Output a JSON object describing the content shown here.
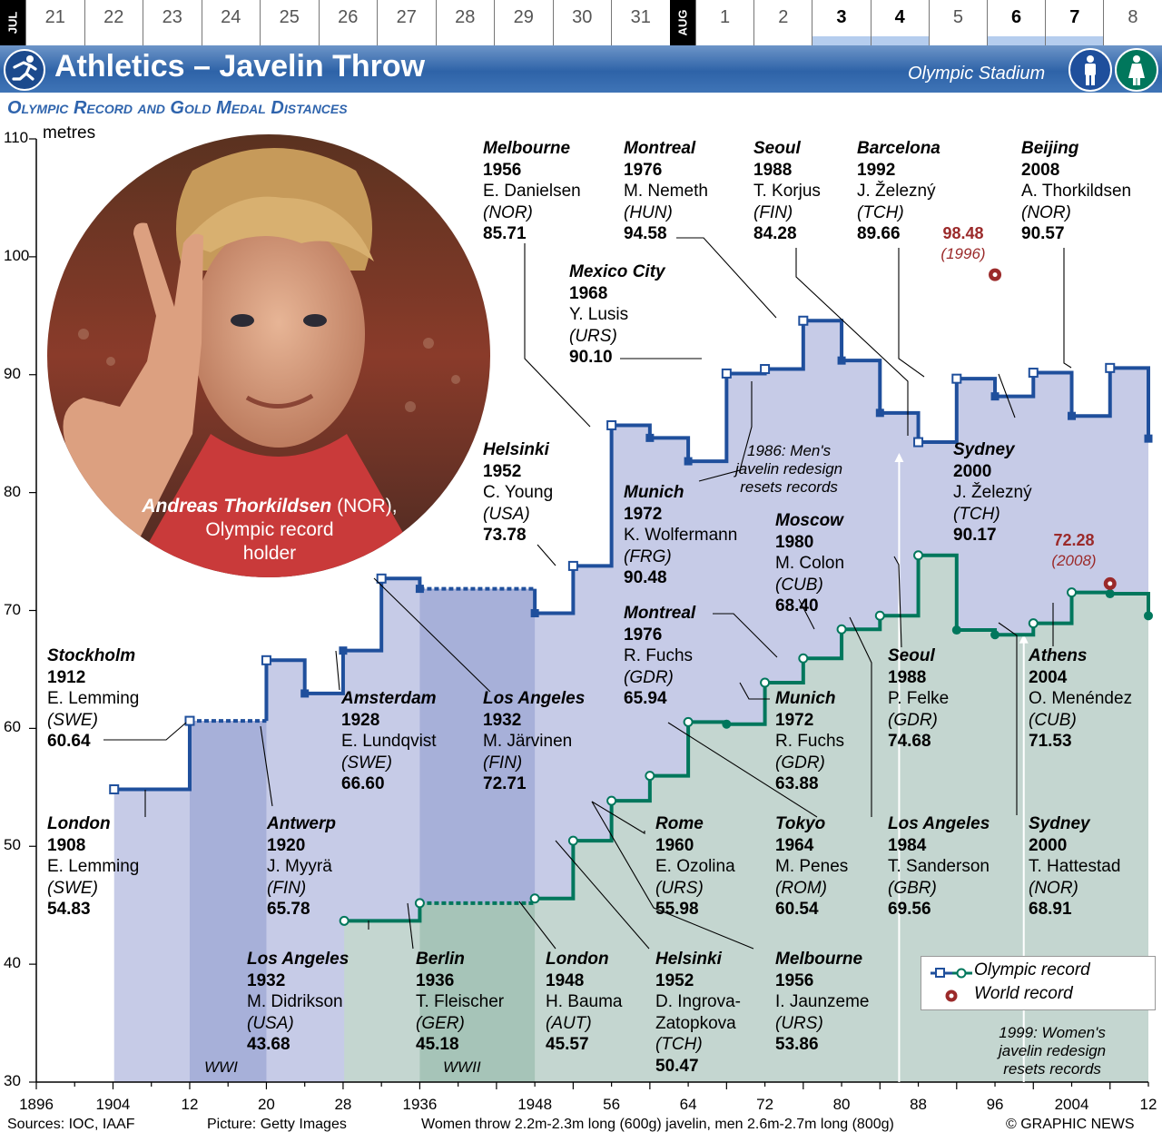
{
  "schedule": {
    "jul_label": "JUL",
    "aug_label": "AUG",
    "jul_days": [
      "21",
      "22",
      "23",
      "24",
      "25",
      "26",
      "27",
      "28",
      "29",
      "30",
      "31"
    ],
    "aug_days": [
      "1",
      "2",
      "3",
      "4",
      "5",
      "6",
      "7",
      "8"
    ],
    "event_days": [
      "3",
      "4",
      "6",
      "7"
    ]
  },
  "header": {
    "title": "Athletics – Javelin Throw",
    "venue": "Olympic Stadium",
    "subtitle": "Olympic Record and Gold Medal Distances",
    "ylabel": "metres"
  },
  "colors": {
    "men": "#1f4f9c",
    "women": "#00775c",
    "men_fill": "#c6cbe7",
    "women_fill": "#c4d6d0",
    "war_men": "#a7b0d9",
    "war_women": "#a6c4b8",
    "record": "#9b2a2a"
  },
  "photo": {
    "caption_name": "Andreas Thorkildsen",
    "caption_country": "(NOR),",
    "caption_rest1": "Olympic record",
    "caption_rest2": "holder"
  },
  "war_labels": {
    "ww1": "WWI",
    "ww2": "WWII"
  },
  "notes": {
    "men_redesign": [
      "1986: Men's",
      "javelin redesign",
      "resets records"
    ],
    "women_redesign": [
      "1999: Women's",
      "javelin redesign",
      "resets records"
    ]
  },
  "world_records": {
    "men": {
      "value": "98.48",
      "year": "(1996)"
    },
    "women": {
      "value": "72.28",
      "year": "(2008)"
    }
  },
  "legend": {
    "olympic": "Olympic record",
    "world": "World record"
  },
  "footer": {
    "sources": "Sources: IOC, IAAF",
    "picture": "Picture: Getty Images",
    "spec": "Women throw 2.2m-2.3m long (600g) javelin, men 2.6m-2.7m long (800g)",
    "credit": "© GRAPHIC NEWS"
  },
  "annotations": [
    {
      "city": "Melbourne",
      "year": "1956",
      "athlete": "E. Danielsen",
      "nation": "(NOR)",
      "value": "85.71"
    },
    {
      "city": "Montreal",
      "year": "1976",
      "athlete": "M. Nemeth",
      "nation": "(HUN)",
      "value": "94.58"
    },
    {
      "city": "Seoul",
      "year": "1988",
      "athlete": "T. Korjus",
      "nation": "(FIN)",
      "value": "84.28"
    },
    {
      "city": "Barcelona",
      "year": "1992",
      "athlete": "J. Železný",
      "nation": "(TCH)",
      "value": "89.66"
    },
    {
      "city": "Beijing",
      "year": "2008",
      "athlete": "A. Thorkildsen",
      "nation": "(NOR)",
      "value": "90.57"
    },
    {
      "city": "Mexico City",
      "year": "1968",
      "athlete": "Y. Lusis",
      "nation": "(URS)",
      "value": "90.10"
    },
    {
      "city": "Helsinki",
      "year": "1952",
      "athlete": "C. Young",
      "nation": "(USA)",
      "value": "73.78"
    },
    {
      "city": "Munich",
      "year": "1972",
      "athlete": "K. Wolfermann",
      "nation": "(FRG)",
      "value": "90.48"
    },
    {
      "city": "Sydney",
      "year": "2000",
      "athlete": "J. Železný",
      "nation": "(TCH)",
      "value": "90.17"
    },
    {
      "city": "Stockholm",
      "year": "1912",
      "athlete": "E. Lemming",
      "nation": "(SWE)",
      "value": "60.64"
    },
    {
      "city": "Amsterdam",
      "year": "1928",
      "athlete": "E. Lundqvist",
      "nation": "(SWE)",
      "value": "66.60"
    },
    {
      "city": "Los Angeles",
      "year": "1932",
      "athlete": "M. Järvinen",
      "nation": "(FIN)",
      "value": "72.71"
    },
    {
      "city": "London",
      "year": "1908",
      "athlete": "E. Lemming",
      "nation": "(SWE)",
      "value": "54.83"
    },
    {
      "city": "Antwerp",
      "year": "1920",
      "athlete": "J. Myyrä",
      "nation": "(FIN)",
      "value": "65.78"
    },
    {
      "city": "Moscow",
      "year": "1980",
      "athlete": "M. Colon",
      "nation": "(CUB)",
      "value": "68.40"
    },
    {
      "city": "Montreal",
      "year": "1976",
      "athlete": "R. Fuchs",
      "nation": "(GDR)",
      "value": "65.94"
    },
    {
      "city": "Munich",
      "year": "1972",
      "athlete": "R. Fuchs",
      "nation": "(GDR)",
      "value": "63.88"
    },
    {
      "city": "Seoul",
      "year": "1988",
      "athlete": "P. Felke",
      "nation": "(GDR)",
      "value": "74.68"
    },
    {
      "city": "Athens",
      "year": "2004",
      "athlete": "O. Menéndez",
      "nation": "(CUB)",
      "value": "71.53"
    },
    {
      "city": "Rome",
      "year": "1960",
      "athlete": "E. Ozolina",
      "nation": "(URS)",
      "value": "55.98"
    },
    {
      "city": "Tokyo",
      "year": "1964",
      "athlete": "M. Penes",
      "nation": "(ROM)",
      "value": "60.54"
    },
    {
      "city": "Los Angeles",
      "year": "1984",
      "athlete": "T. Sanderson",
      "nation": "(GBR)",
      "value": "69.56"
    },
    {
      "city": "Sydney",
      "year": "2000",
      "athlete": "T. Hattestad",
      "nation": "(NOR)",
      "value": "68.91"
    },
    {
      "city": "Los Angeles",
      "year": "1932",
      "athlete": "M. Didrikson",
      "nation": "(USA)",
      "value": "43.68"
    },
    {
      "city": "Berlin",
      "year": "1936",
      "athlete": "T. Fleischer",
      "nation": "(GER)",
      "value": "45.18"
    },
    {
      "city": "London",
      "year": "1948",
      "athlete": "H. Bauma",
      "nation": "(AUT)",
      "value": "45.57"
    },
    {
      "city": "Helsinki",
      "year": "1952",
      "athlete": "D. Ingrova-",
      "athlete2": "Zatopkova",
      "nation": "(TCH)",
      "value": "50.47"
    },
    {
      "city": "Melbourne",
      "year": "1956",
      "athlete": "I. Jaunzeme",
      "nation": "(URS)",
      "value": "53.86"
    }
  ],
  "chart_data": {
    "type": "line",
    "title": "Olympic Record and Gold Medal Distances",
    "ylabel": "metres",
    "ylim": [
      30,
      110
    ],
    "xlim": [
      1896,
      2012
    ],
    "yticks": [
      30,
      40,
      50,
      60,
      70,
      80,
      90,
      100,
      110
    ],
    "xtick_labels": [
      "1896",
      "1904",
      "12",
      "20",
      "28",
      "1936",
      "1948",
      "56",
      "64",
      "72",
      "80",
      "88",
      "96",
      "2004",
      "12"
    ],
    "xtick_values": [
      1896,
      1904,
      1912,
      1920,
      1928,
      1936,
      1948,
      1956,
      1964,
      1972,
      1980,
      1988,
      1996,
      2004,
      2012
    ],
    "series": [
      {
        "name": "Men",
        "olympic_record_steps": [
          [
            1908,
            54.83
          ],
          [
            1912,
            60.64
          ],
          [
            1920,
            65.78
          ],
          [
            1932,
            72.71
          ],
          [
            1952,
            73.78
          ],
          [
            1956,
            85.71
          ],
          [
            1968,
            90.1
          ],
          [
            1972,
            90.48
          ],
          [
            1976,
            94.58
          ],
          [
            1988,
            84.28
          ],
          [
            1992,
            89.66
          ],
          [
            2000,
            90.17
          ],
          [
            2008,
            90.57
          ]
        ],
        "gold_medals": [
          [
            1908,
            54.83
          ],
          [
            1912,
            60.64
          ],
          [
            1920,
            65.78
          ],
          [
            1924,
            62.96
          ],
          [
            1928,
            66.6
          ],
          [
            1932,
            72.71
          ],
          [
            1936,
            71.84
          ],
          [
            1948,
            69.77
          ],
          [
            1952,
            73.78
          ],
          [
            1956,
            85.71
          ],
          [
            1960,
            84.64
          ],
          [
            1964,
            82.66
          ],
          [
            1968,
            90.1
          ],
          [
            1972,
            90.48
          ],
          [
            1976,
            94.58
          ],
          [
            1980,
            91.2
          ],
          [
            1984,
            86.76
          ],
          [
            1988,
            84.28
          ],
          [
            1992,
            89.66
          ],
          [
            1996,
            88.16
          ],
          [
            2000,
            90.17
          ],
          [
            2004,
            86.5
          ],
          [
            2008,
            90.57
          ],
          [
            2012,
            84.58
          ]
        ]
      },
      {
        "name": "Women",
        "olympic_record_steps": [
          [
            1932,
            43.68
          ],
          [
            1936,
            45.18
          ],
          [
            1948,
            45.57
          ],
          [
            1952,
            50.47
          ],
          [
            1956,
            53.86
          ],
          [
            1960,
            55.98
          ],
          [
            1964,
            60.54
          ],
          [
            1972,
            63.88
          ],
          [
            1976,
            65.94
          ],
          [
            1980,
            68.4
          ],
          [
            1984,
            69.56
          ],
          [
            1988,
            74.68
          ],
          [
            2000,
            68.91
          ],
          [
            2004,
            71.53
          ]
        ],
        "gold_medals": [
          [
            1932,
            43.68
          ],
          [
            1936,
            45.18
          ],
          [
            1948,
            45.57
          ],
          [
            1952,
            50.47
          ],
          [
            1956,
            53.86
          ],
          [
            1960,
            55.98
          ],
          [
            1964,
            60.54
          ],
          [
            1968,
            60.36
          ],
          [
            1972,
            63.88
          ],
          [
            1976,
            65.94
          ],
          [
            1980,
            68.4
          ],
          [
            1984,
            69.56
          ],
          [
            1988,
            74.68
          ],
          [
            1992,
            68.34
          ],
          [
            1996,
            67.94
          ],
          [
            2000,
            68.91
          ],
          [
            2004,
            71.53
          ],
          [
            2008,
            71.42
          ],
          [
            2012,
            69.55
          ]
        ]
      }
    ],
    "world_records": [
      {
        "series": "Men",
        "value": 98.48,
        "year": 1996
      },
      {
        "series": "Women",
        "value": 72.28,
        "year": 2008
      }
    ],
    "legend": [
      "Olympic record",
      "World record"
    ]
  }
}
